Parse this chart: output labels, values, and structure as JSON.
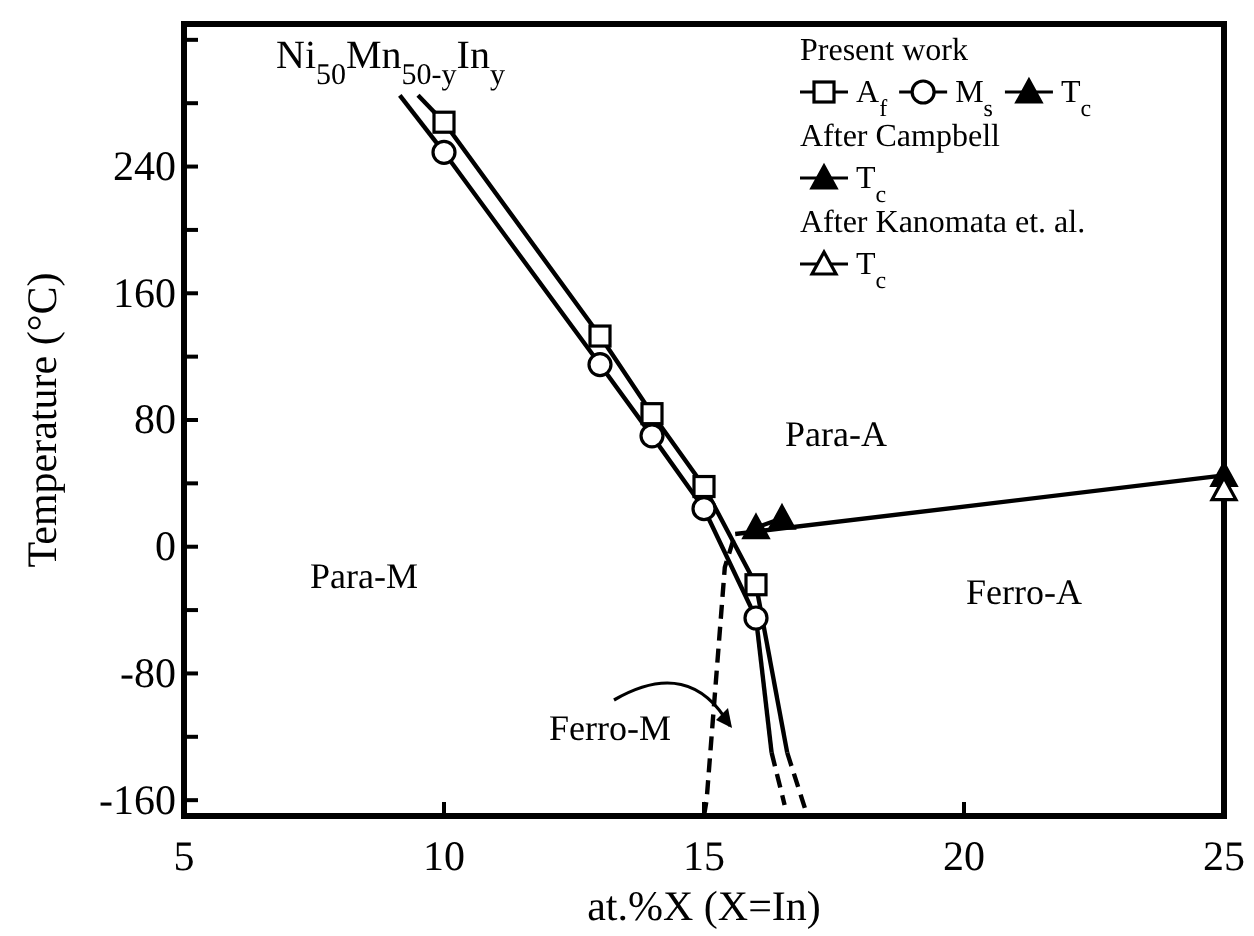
{
  "chart_data": {
    "type": "line",
    "title": "Ni$_{50}$Mn$_{50-y}$In$_{y}$",
    "xlabel": "at.%X (X=In)",
    "ylabel": "Temperature (°C)",
    "xlim": [
      5,
      25
    ],
    "xticks": [
      5,
      10,
      15,
      20,
      25
    ],
    "ylim": [
      -170,
      330
    ],
    "yticks": [
      -160,
      {
        "value": -120,
        "label": null
      },
      -80,
      {
        "value": -40,
        "label": null
      },
      0,
      {
        "value": 40,
        "label": null
      },
      80,
      {
        "value": 120,
        "label": null
      },
      160,
      {
        "value": 200,
        "label": null
      },
      240,
      {
        "value": 280,
        "label": null
      },
      {
        "value": 320,
        "label": null
      }
    ],
    "grid": false,
    "legend": "top right",
    "series": [
      {
        "name": "A$_{f}$",
        "color": "#ffffff",
        "marker": "square",
        "line_style": "solid",
        "x": [
          10,
          13,
          14,
          15,
          16
        ],
        "values": [
          268,
          133,
          84,
          38,
          -24
        ]
      },
      {
        "name": "M$_{s}$",
        "color": "#ffffff",
        "marker": "circle",
        "line_style": "solid",
        "x": [
          10,
          13,
          14,
          15,
          16
        ],
        "values": [
          249,
          115,
          70,
          24,
          -45
        ]
      },
      {
        "name": "T$_{c}$",
        "color": "#000000",
        "marker": "triangle",
        "line_style": "solid",
        "x": [
          16,
          16.5
        ],
        "values": [
          12,
          18
        ]
      },
      {
        "name": "T$_{c}$",
        "color": "#000000",
        "marker": "triangle",
        "line_style": "solid",
        "x": [
          25
        ],
        "values": [
          45
        ]
      },
      {
        "name": "T$_{c}$",
        "color": "#ffffff",
        "marker": "triangle",
        "line_style": "solid",
        "x": [
          25
        ],
        "values": [
          36
        ]
      },
      {
        "color": "#000000",
        "marker": "none",
        "line_style": "solid",
        "x": [
          15.6,
          25
        ],
        "values": [
          8,
          45
        ]
      },
      {
        "color": "#000000",
        "marker": "none",
        "line_style": "solid",
        "x": [
          9.5,
          10
        ],
        "values": [
          285,
          268
        ]
      },
      {
        "color": "#000000",
        "marker": "none",
        "line_style": "solid",
        "x": [
          9.15,
          10
        ],
        "values": [
          285,
          249
        ]
      },
      {
        "color": "#000000",
        "marker": "none",
        "line_style": "solid",
        "x": [
          16,
          16.6
        ],
        "values": [
          -24,
          -130
        ]
      },
      {
        "color": "#000000",
        "marker": "none",
        "line_style": "solid",
        "x": [
          16,
          16.3
        ],
        "values": [
          -45,
          -130
        ]
      },
      {
        "color": "#000000",
        "marker": "none",
        "line_style": "dashed",
        "x": [
          16.6,
          16.95
        ],
        "values": [
          -130,
          -166
        ]
      },
      {
        "color": "#000000",
        "marker": "none",
        "line_style": "dashed",
        "x": [
          16.3,
          16.55
        ],
        "values": [
          -130,
          -163
        ]
      },
      {
        "color": "#000000",
        "marker": "none",
        "line_style": "dashed",
        "x": [
          15.0,
          15.05,
          15.4,
          15.6
        ],
        "values": [
          -170,
          -160,
          -13,
          8
        ]
      }
    ],
    "annotations": [
      "Present work",
      "After Campbell",
      "After Kanomata et. al.",
      "Para-A",
      "Para-M",
      "Ferro-A",
      "Ferro-M"
    ]
  }
}
